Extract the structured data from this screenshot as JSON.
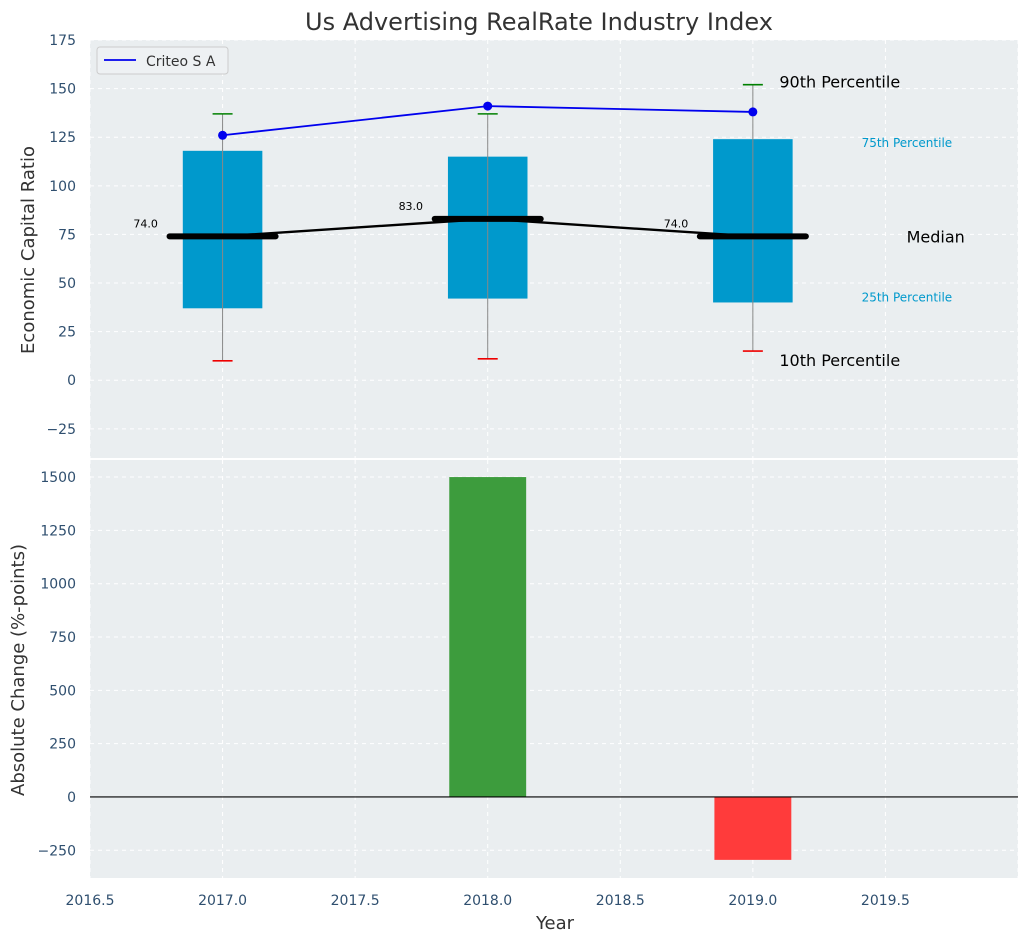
{
  "chart_data": [
    {
      "type": "box",
      "title": "Us Advertising RealRate Industry Index",
      "ylabel": "Economic Capital Ratio",
      "ylim": [
        -40,
        175
      ],
      "yticks": [
        -25,
        0,
        25,
        50,
        75,
        100,
        125,
        150,
        175
      ],
      "xlim": [
        2016.5,
        2020.0
      ],
      "grid": true,
      "legend_position": "top-left",
      "boxes": [
        {
          "x": 2017,
          "p10": 10,
          "p25": 37,
          "median": 74,
          "p75": 118,
          "p90": 137
        },
        {
          "x": 2018,
          "p10": 11,
          "p25": 42,
          "median": 83,
          "p75": 115,
          "p90": 137
        },
        {
          "x": 2019,
          "p10": 15,
          "p25": 40,
          "median": 74,
          "p75": 124,
          "p90": 152
        }
      ],
      "median_labels": [
        "74.0",
        "83.0",
        "74.0"
      ],
      "series": [
        {
          "name": "Criteo S A",
          "x": [
            2017,
            2018,
            2019
          ],
          "values": [
            126,
            141,
            138
          ]
        }
      ],
      "annotations": {
        "p90": "90th Percentile",
        "p75": "75th Percentile",
        "median": "Median",
        "p25": "25th Percentile",
        "p10": "10th Percentile"
      }
    },
    {
      "type": "bar",
      "ylabel": "Absolute Change (%-points)",
      "xlabel": "Year",
      "ylim": [
        -380,
        1580
      ],
      "yticks": [
        -250,
        0,
        250,
        500,
        750,
        1000,
        1250,
        1500
      ],
      "xlim": [
        2016.5,
        2020.0
      ],
      "xticks": [
        2016.5,
        2017.0,
        2017.5,
        2018.0,
        2018.5,
        2019.0,
        2019.5
      ],
      "x": [
        2018,
        2019
      ],
      "values": [
        1500,
        -295
      ],
      "grid": true
    }
  ],
  "colors": {
    "panel_bg": "#EAEEF0",
    "box": "#0099CC",
    "line": "#0000EE",
    "p90_cap": "#008000",
    "p10_cap": "#EE0000",
    "positive_bar": "#3D9C3D",
    "negative_bar": "#FF3B3B",
    "text": "#333333",
    "tick_text": "#2F4F6F",
    "annotation_cyan": "#0099CC"
  }
}
